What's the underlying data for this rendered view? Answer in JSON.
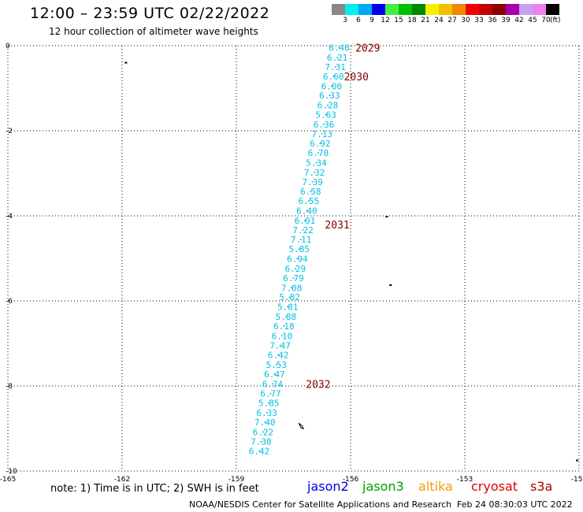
{
  "header": {
    "title": "12:00 – 23:59 UTC 02/22/2022",
    "subtitle": "12 hour collection of altimeter wave heights"
  },
  "colorbar": {
    "unit_label": "(ft)",
    "bins": [
      {
        "label": "3",
        "color": "#888888"
      },
      {
        "label": "6",
        "color": "#00f0f0"
      },
      {
        "label": "9",
        "color": "#00a8f0"
      },
      {
        "label": "12",
        "color": "#0000f0"
      },
      {
        "label": "15",
        "color": "#40f040"
      },
      {
        "label": "18",
        "color": "#00c000"
      },
      {
        "label": "21",
        "color": "#008800"
      },
      {
        "label": "24",
        "color": "#f0f000"
      },
      {
        "label": "27",
        "color": "#f0c000"
      },
      {
        "label": "30",
        "color": "#f08800"
      },
      {
        "label": "33",
        "color": "#f00000"
      },
      {
        "label": "36",
        "color": "#c00000"
      },
      {
        "label": "39",
        "color": "#880000"
      },
      {
        "label": "42",
        "color": "#a800a8"
      },
      {
        "label": "45",
        "color": "#c8a0f0"
      },
      {
        "label": "70",
        "color": "#f080f0"
      },
      {
        "label": "",
        "color": "#000000"
      }
    ]
  },
  "map": {
    "lon_range": [
      -165,
      -150
    ],
    "lat_range": [
      -10,
      0
    ],
    "x_tick_labels": [
      "-165",
      "-162",
      "-159",
      "-156",
      "-153",
      "-150"
    ],
    "y_tick_labels": [
      "0",
      "-2",
      "-4",
      "-6",
      "-8",
      "-10"
    ],
    "track_color": "#00bfe0",
    "time_color": "#800000",
    "track": [
      {
        "lon": -156.3,
        "lat": -0.05,
        "swh": "6.46"
      },
      {
        "lon": -156.35,
        "lat": -0.28,
        "swh": "6.21"
      },
      {
        "lon": -156.4,
        "lat": -0.5,
        "swh": "7.31"
      },
      {
        "lon": -156.45,
        "lat": -0.72,
        "swh": "6.60"
      },
      {
        "lon": -156.5,
        "lat": -0.95,
        "swh": "6.00"
      },
      {
        "lon": -156.55,
        "lat": -1.17,
        "swh": "6.33"
      },
      {
        "lon": -156.6,
        "lat": -1.4,
        "swh": "6.28"
      },
      {
        "lon": -156.65,
        "lat": -1.62,
        "swh": "5.63"
      },
      {
        "lon": -156.7,
        "lat": -1.85,
        "swh": "6.36"
      },
      {
        "lon": -156.75,
        "lat": -2.07,
        "swh": "7.13"
      },
      {
        "lon": -156.8,
        "lat": -2.3,
        "swh": "6.92"
      },
      {
        "lon": -156.85,
        "lat": -2.52,
        "swh": "6.70"
      },
      {
        "lon": -156.9,
        "lat": -2.75,
        "swh": "5.34"
      },
      {
        "lon": -156.95,
        "lat": -2.98,
        "swh": "7.32"
      },
      {
        "lon": -157.0,
        "lat": -3.2,
        "swh": "7.39"
      },
      {
        "lon": -157.05,
        "lat": -3.43,
        "swh": "6.58"
      },
      {
        "lon": -157.1,
        "lat": -3.65,
        "swh": "6.55"
      },
      {
        "lon": -157.15,
        "lat": -3.88,
        "swh": "6.40"
      },
      {
        "lon": -157.2,
        "lat": -4.11,
        "swh": "6.01"
      },
      {
        "lon": -157.25,
        "lat": -4.33,
        "swh": "7.22"
      },
      {
        "lon": -157.3,
        "lat": -4.56,
        "swh": "7.11"
      },
      {
        "lon": -157.35,
        "lat": -4.78,
        "swh": "5.85"
      },
      {
        "lon": -157.4,
        "lat": -5.01,
        "swh": "6.94"
      },
      {
        "lon": -157.45,
        "lat": -5.24,
        "swh": "6.29"
      },
      {
        "lon": -157.5,
        "lat": -5.46,
        "swh": "6.79"
      },
      {
        "lon": -157.55,
        "lat": -5.69,
        "swh": "7.08"
      },
      {
        "lon": -157.6,
        "lat": -5.91,
        "swh": "5.82"
      },
      {
        "lon": -157.65,
        "lat": -6.14,
        "swh": "5.81"
      },
      {
        "lon": -157.7,
        "lat": -6.37,
        "swh": "5.88"
      },
      {
        "lon": -157.75,
        "lat": -6.59,
        "swh": "6.18"
      },
      {
        "lon": -157.8,
        "lat": -6.82,
        "swh": "6.10"
      },
      {
        "lon": -157.85,
        "lat": -7.05,
        "swh": "7.47"
      },
      {
        "lon": -157.9,
        "lat": -7.27,
        "swh": "6.42"
      },
      {
        "lon": -157.95,
        "lat": -7.5,
        "swh": "5.53"
      },
      {
        "lon": -158.0,
        "lat": -7.72,
        "swh": "6.47"
      },
      {
        "lon": -158.05,
        "lat": -7.95,
        "swh": "6.74"
      },
      {
        "lon": -158.1,
        "lat": -8.18,
        "swh": "6.77"
      },
      {
        "lon": -158.15,
        "lat": -8.4,
        "swh": "5.85"
      },
      {
        "lon": -158.2,
        "lat": -8.63,
        "swh": "6.33"
      },
      {
        "lon": -158.25,
        "lat": -8.85,
        "swh": "7.40"
      },
      {
        "lon": -158.3,
        "lat": -9.08,
        "swh": "6.22"
      },
      {
        "lon": -158.35,
        "lat": -9.31,
        "swh": "7.38"
      },
      {
        "lon": -158.4,
        "lat": -9.53,
        "swh": "6.42"
      }
    ],
    "time_labels": [
      {
        "lon": -155.55,
        "lat": -0.05,
        "text": "2029"
      },
      {
        "lon": -155.85,
        "lat": -0.72,
        "text": "2030"
      },
      {
        "lon": -156.35,
        "lat": -4.2,
        "text": "2031"
      },
      {
        "lon": -156.85,
        "lat": -7.95,
        "text": "2032"
      }
    ],
    "islands": [
      {
        "lon": -161.9,
        "lat": -0.4
      },
      {
        "lon": -155.05,
        "lat": -4.02
      },
      {
        "lon": -154.95,
        "lat": -5.63
      },
      {
        "lon": -150.05,
        "lat": -9.75
      }
    ],
    "atolls": [
      {
        "lon": -157.3,
        "lat": -8.93
      }
    ]
  },
  "note": "note:  1) Time is in UTC;  2) SWH is in feet",
  "legend": [
    {
      "label": "jason2",
      "color": "#0000e0"
    },
    {
      "label": "jason3",
      "color": "#00a000"
    },
    {
      "label": "altika",
      "color": "#f0a000"
    },
    {
      "label": "cryosat",
      "color": "#e00000"
    },
    {
      "label": "s3a",
      "color": "#b00000"
    }
  ],
  "footer": {
    "credit": "NOAA/NESDIS Center for Satellite Applications and Research",
    "timestamp": "Feb 24 08:30:03 UTC 2022"
  }
}
